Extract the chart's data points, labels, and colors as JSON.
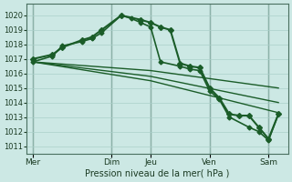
{
  "bg_color": "#cce8e4",
  "grid_color": "#aad0ca",
  "line_color": "#1a5c28",
  "title": "Pression niveau de la mer( hPa )",
  "ylim": [
    1010.5,
    1020.8
  ],
  "yticks": [
    1011,
    1012,
    1013,
    1014,
    1015,
    1016,
    1017,
    1018,
    1019,
    1020
  ],
  "xtick_labels": [
    "Mer",
    "Dim",
    "Jeu",
    "Ven",
    "Sam"
  ],
  "xtick_positions": [
    0,
    4,
    6,
    9,
    12
  ],
  "xmax": 13,
  "lines": [
    {
      "x": [
        0,
        1,
        1.5,
        2.5,
        3.0,
        3.5,
        4.5,
        5.5,
        6.0,
        6.5,
        7.0,
        7.5,
        8.0,
        8.5,
        9.0,
        9.5,
        10.0,
        10.5,
        11.0,
        11.5,
        12.0,
        12.5
      ],
      "y": [
        1017.0,
        1017.3,
        1017.8,
        1018.3,
        1018.5,
        1019.0,
        1020.0,
        1019.7,
        1019.5,
        1019.2,
        1019.0,
        1016.7,
        1016.5,
        1016.4,
        1015.0,
        1014.3,
        1013.2,
        1013.1,
        1013.1,
        1012.3,
        1011.5,
        1013.2
      ],
      "lw": 1.5,
      "marker": "D",
      "ms": 3.0
    },
    {
      "x": [
        0,
        1,
        1.5,
        2.5,
        3.0,
        3.5,
        4.5,
        5.0,
        5.5,
        6.0,
        6.5,
        7.5,
        8.0,
        8.5,
        9.0,
        9.5,
        10.0,
        11.0,
        11.5,
        12.0,
        12.5
      ],
      "y": [
        1016.8,
        1017.2,
        1017.9,
        1018.2,
        1018.4,
        1018.8,
        1020.0,
        1019.8,
        1019.5,
        1019.2,
        1016.8,
        1016.5,
        1016.3,
        1016.2,
        1014.8,
        1014.2,
        1013.0,
        1012.3,
        1012.0,
        1011.4,
        1013.2
      ],
      "lw": 1.2,
      "marker": "D",
      "ms": 2.5
    },
    {
      "x": [
        0,
        6.0,
        12.5
      ],
      "y": [
        1016.8,
        1016.2,
        1015.0
      ],
      "lw": 1.0,
      "marker": null,
      "ms": 0
    },
    {
      "x": [
        0,
        6.0,
        12.5
      ],
      "y": [
        1016.8,
        1015.8,
        1014.0
      ],
      "lw": 1.0,
      "marker": null,
      "ms": 0
    },
    {
      "x": [
        0,
        6.0,
        12.5
      ],
      "y": [
        1016.8,
        1015.5,
        1013.3
      ],
      "lw": 1.0,
      "marker": null,
      "ms": 0
    }
  ],
  "vlines": [
    0,
    4,
    6,
    9,
    12
  ],
  "vline_color": "#4a7060"
}
